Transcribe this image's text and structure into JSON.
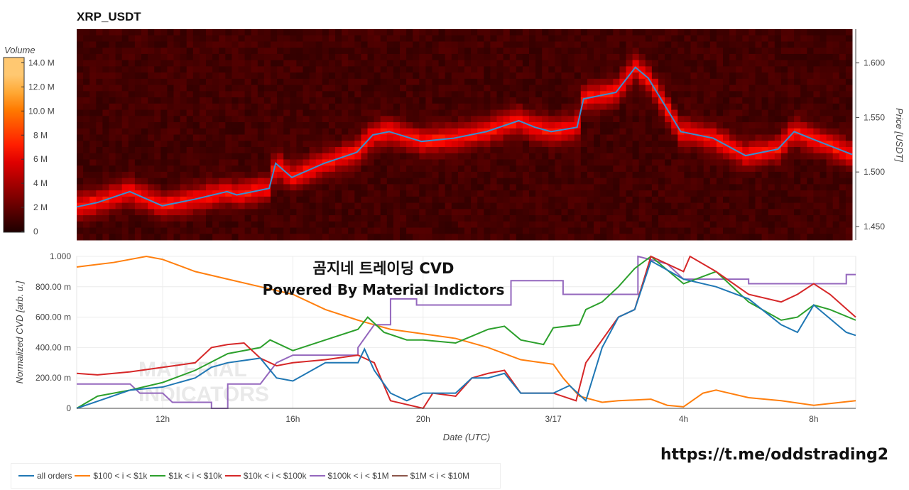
{
  "title": "XRP_USDT",
  "overlay": {
    "line1": "곰지네 트레이딩 CVD",
    "line2": "Powered By Material Indictors"
  },
  "url": "https://t.me/oddstrading2",
  "watermark": "MATERIAL INDICATORS",
  "chart_data": [
    {
      "type": "heatmap",
      "title": "XRP_USDT",
      "ylabel": "Price [USDT]",
      "ylim": [
        1.4376,
        1.631
      ],
      "xlim_hours": [
        9.36,
        33.29
      ],
      "yticks": [
        "1.450",
        "1.500",
        "1.550",
        "1.600"
      ],
      "colorbar": {
        "label": "Volume",
        "ticks": [
          "0",
          "2 M",
          "4 M",
          "6 M",
          "8 M",
          "10.0 M",
          "12.0 M",
          "14.0 M"
        ],
        "range": [
          0,
          14500000
        ]
      },
      "price_line": {
        "x": [
          9.36,
          10,
          11,
          12,
          13,
          14,
          14.3,
          15.3,
          15.5,
          16,
          17,
          18,
          18.5,
          19,
          20,
          21,
          22,
          23,
          23.5,
          24,
          24.8,
          25,
          26,
          26.6,
          27,
          28,
          29,
          30,
          31,
          31.5,
          32,
          33.29
        ],
        "y": [
          1.468,
          1.472,
          1.482,
          1.469,
          1.475,
          1.482,
          1.479,
          1.485,
          1.508,
          1.495,
          1.508,
          1.518,
          1.534,
          1.537,
          1.528,
          1.531,
          1.537,
          1.547,
          1.541,
          1.537,
          1.541,
          1.567,
          1.573,
          1.596,
          1.586,
          1.537,
          1.531,
          1.515,
          1.521,
          1.537,
          1.531,
          1.516
        ]
      }
    },
    {
      "type": "line",
      "xlabel": "Date (UTC)",
      "ylabel": "Normalized CVD [arb. u.]",
      "ylim": [
        0,
        1
      ],
      "xlim_hours": [
        9.36,
        33.29
      ],
      "xticks": [
        {
          "v": 12,
          "label": "12h"
        },
        {
          "v": 16,
          "label": "16h"
        },
        {
          "v": 20,
          "label": "20h"
        },
        {
          "v": 24,
          "label": "3/17"
        },
        {
          "v": 28,
          "label": "4h"
        },
        {
          "v": 32,
          "label": "8h"
        }
      ],
      "yticks": [
        {
          "v": 0,
          "label": "0"
        },
        {
          "v": 0.2,
          "label": "200.00 m"
        },
        {
          "v": 0.4,
          "label": "400.00 m"
        },
        {
          "v": 0.6,
          "label": "600.00 m"
        },
        {
          "v": 0.8,
          "label": "800.00 m"
        },
        {
          "v": 1,
          "label": "1.000"
        }
      ],
      "series": [
        {
          "name": "$100 < i < $1k",
          "color": "#ff7f0e",
          "x": [
            9.36,
            10.5,
            11.5,
            12,
            13,
            14,
            15,
            16,
            17,
            18,
            19,
            20,
            21,
            22,
            23,
            24,
            24.3,
            24.8,
            25.5,
            26,
            27,
            27.5,
            28,
            28.6,
            29,
            30,
            31,
            32,
            33.29
          ],
          "y": [
            0.93,
            0.96,
            1.0,
            0.98,
            0.9,
            0.85,
            0.8,
            0.75,
            0.65,
            0.58,
            0.52,
            0.49,
            0.46,
            0.4,
            0.32,
            0.29,
            0.2,
            0.08,
            0.04,
            0.05,
            0.06,
            0.02,
            0.01,
            0.1,
            0.12,
            0.07,
            0.05,
            0.02,
            0.05
          ]
        },
        {
          "name": "$100k < i < $1M",
          "color": "#9467bd",
          "x": [
            9.36,
            11,
            11.3,
            12,
            12.3,
            13.5,
            13.5,
            14,
            14,
            15,
            15.5,
            16,
            18,
            18,
            18.5,
            19,
            19,
            19.8,
            19.8,
            22.7,
            22.7,
            24.3,
            24.3,
            26.6,
            26.6,
            27.5,
            28,
            30,
            30,
            33,
            33,
            33.29
          ],
          "y": [
            0.16,
            0.16,
            0.1,
            0.1,
            0.04,
            0.04,
            0,
            0,
            0.16,
            0.16,
            0.3,
            0.35,
            0.35,
            0.4,
            0.55,
            0.55,
            0.72,
            0.72,
            0.68,
            0.68,
            0.84,
            0.84,
            0.75,
            0.75,
            1.0,
            0.95,
            0.85,
            0.85,
            0.82,
            0.82,
            0.88,
            0.88
          ]
        },
        {
          "name": "$1k < i < $10k",
          "color": "#2ca02c",
          "x": [
            9.36,
            10,
            11,
            12,
            13,
            14,
            15,
            15.3,
            16,
            17,
            18,
            18.3,
            18.8,
            19.5,
            20,
            21,
            22,
            22.5,
            23,
            23.7,
            24,
            24.8,
            25,
            25.5,
            26,
            26.5,
            27,
            28,
            29,
            30,
            31,
            31.5,
            32,
            32.5,
            33.29
          ],
          "y": [
            0,
            0.08,
            0.12,
            0.17,
            0.25,
            0.36,
            0.4,
            0.45,
            0.38,
            0.45,
            0.52,
            0.6,
            0.5,
            0.45,
            0.45,
            0.43,
            0.52,
            0.54,
            0.45,
            0.42,
            0.53,
            0.55,
            0.65,
            0.7,
            0.8,
            0.92,
            1.0,
            0.82,
            0.9,
            0.7,
            0.58,
            0.6,
            0.68,
            0.65,
            0.58
          ]
        },
        {
          "name": "$10k < i < $100k",
          "color": "#d62728",
          "x": [
            9.36,
            10,
            11,
            12,
            13,
            13.5,
            14,
            14.5,
            15,
            15.5,
            16,
            17,
            18,
            18.5,
            19,
            20,
            20.3,
            21,
            21.5,
            22,
            22.5,
            23,
            24,
            24.7,
            25,
            26,
            26.5,
            27,
            28,
            28.2,
            29,
            30,
            31,
            31.5,
            32,
            32.5,
            33.29
          ],
          "y": [
            0.23,
            0.22,
            0.24,
            0.27,
            0.3,
            0.4,
            0.42,
            0.43,
            0.33,
            0.28,
            0.3,
            0.32,
            0.35,
            0.3,
            0.05,
            0.0,
            0.1,
            0.08,
            0.2,
            0.23,
            0.25,
            0.1,
            0.1,
            0.05,
            0.3,
            0.6,
            0.65,
            1.0,
            0.9,
            1.0,
            0.9,
            0.75,
            0.7,
            0.75,
            0.82,
            0.75,
            0.6
          ]
        },
        {
          "name": "all orders",
          "color": "#1f77b4",
          "x": [
            9.36,
            11,
            12,
            13,
            13.5,
            14,
            15,
            15.5,
            16,
            17,
            18,
            18.2,
            18.5,
            19,
            19.5,
            20,
            21,
            21.5,
            22,
            22.5,
            23,
            24,
            24.5,
            25,
            25.5,
            26,
            26.5,
            27,
            28,
            29,
            30,
            31,
            31.5,
            32,
            33,
            33.29
          ],
          "y": [
            0,
            0.12,
            0.14,
            0.2,
            0.27,
            0.3,
            0.33,
            0.2,
            0.18,
            0.3,
            0.3,
            0.39,
            0.25,
            0.1,
            0.05,
            0.1,
            0.1,
            0.2,
            0.2,
            0.23,
            0.1,
            0.1,
            0.15,
            0.05,
            0.4,
            0.6,
            0.65,
            0.97,
            0.85,
            0.8,
            0.72,
            0.55,
            0.5,
            0.68,
            0.5,
            0.48
          ]
        },
        {
          "name": "$1M < i < $10M",
          "color": "#8c564b",
          "x": [],
          "y": []
        }
      ],
      "legend_order": [
        "all orders",
        "$100 < i < $1k",
        "$1k < i < $10k",
        "$10k < i < $100k",
        "$100k < i < $1M",
        "$1M < i < $10M"
      ],
      "legend_placement": "bottom-left"
    }
  ]
}
